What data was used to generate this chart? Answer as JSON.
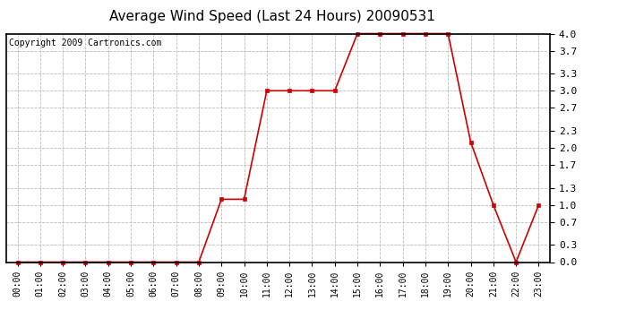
{
  "title": "Average Wind Speed (Last 24 Hours) 20090531",
  "copyright": "Copyright 2009 Cartronics.com",
  "hours": [
    "00:00",
    "01:00",
    "02:00",
    "03:00",
    "04:00",
    "05:00",
    "06:00",
    "07:00",
    "08:00",
    "09:00",
    "10:00",
    "11:00",
    "12:00",
    "13:00",
    "14:00",
    "15:00",
    "16:00",
    "17:00",
    "18:00",
    "19:00",
    "20:00",
    "21:00",
    "22:00",
    "23:00"
  ],
  "values": [
    0.0,
    0.0,
    0.0,
    0.0,
    0.0,
    0.0,
    0.0,
    0.0,
    0.0,
    1.1,
    1.1,
    3.0,
    3.0,
    3.0,
    3.0,
    4.0,
    4.0,
    4.0,
    4.0,
    4.0,
    2.1,
    1.0,
    0.0,
    1.0
  ],
  "ylim_min": 0.0,
  "ylim_max": 4.0,
  "yticks": [
    0.0,
    0.3,
    0.7,
    1.0,
    1.3,
    1.7,
    2.0,
    2.3,
    2.7,
    3.0,
    3.3,
    3.7,
    4.0
  ],
  "ytick_labels": [
    "0.0",
    "0.3",
    "0.7",
    "1.0",
    "1.3",
    "1.7",
    "2.0",
    "2.3",
    "2.7",
    "3.0",
    "3.3",
    "3.7",
    "4.0"
  ],
  "line_color": "#cc0000",
  "marker": "s",
  "marker_size": 3,
  "grid_color": "#bbbbbb",
  "bg_color": "#ffffff",
  "plot_bg_color": "#ffffff",
  "title_fontsize": 11,
  "copyright_fontsize": 7,
  "xtick_fontsize": 7,
  "ytick_fontsize": 8
}
